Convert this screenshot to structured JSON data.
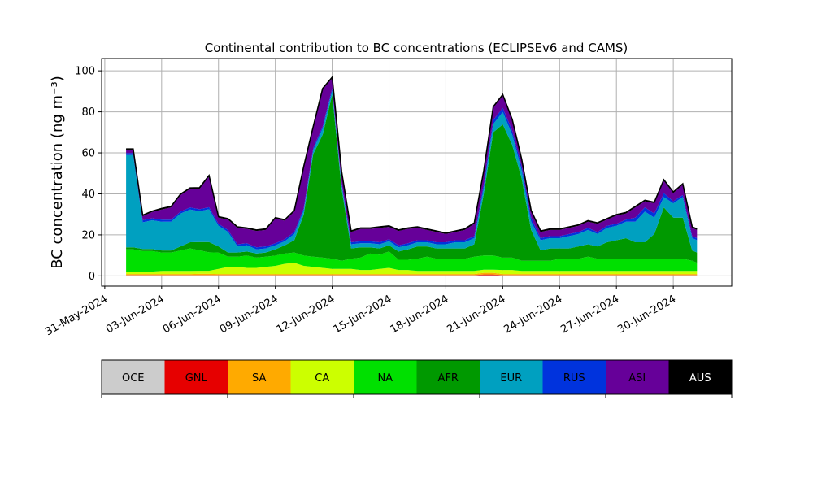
{
  "chart_data": {
    "type": "area",
    "stacked": true,
    "title": "Continental contribution to BC concentrations (ECLIPSEv6 and CAMS)",
    "ylabel": "BC concentration (ng m⁻³)",
    "ylim": [
      -5,
      106
    ],
    "xlim": [
      "2024-05-30T20:00",
      "2024-07-03T02:00"
    ],
    "yticks": [
      0,
      20,
      40,
      60,
      80,
      100
    ],
    "xticks": [
      "31-May-2024",
      "03-Jun-2024",
      "06-Jun-2024",
      "09-Jun-2024",
      "12-Jun-2024",
      "15-Jun-2024",
      "18-Jun-2024",
      "21-Jun-2024",
      "24-Jun-2024",
      "27-Jun-2024",
      "30-Jun-2024"
    ],
    "grid": true,
    "legend_position": "bottom colorbar",
    "x": [
      "2024-06-01T03:00",
      "2024-06-01T12:00",
      "2024-06-02T00:00",
      "2024-06-02T12:00",
      "2024-06-03T00:00",
      "2024-06-03T12:00",
      "2024-06-04T00:00",
      "2024-06-04T12:00",
      "2024-06-05T00:00",
      "2024-06-05T12:00",
      "2024-06-06T00:00",
      "2024-06-06T12:00",
      "2024-06-07T00:00",
      "2024-06-07T12:00",
      "2024-06-08T00:00",
      "2024-06-08T12:00",
      "2024-06-09T00:00",
      "2024-06-09T12:00",
      "2024-06-10T00:00",
      "2024-06-10T12:00",
      "2024-06-11T00:00",
      "2024-06-11T12:00",
      "2024-06-12T00:00",
      "2024-06-12T12:00",
      "2024-06-13T00:00",
      "2024-06-13T12:00",
      "2024-06-14T00:00",
      "2024-06-14T12:00",
      "2024-06-15T00:00",
      "2024-06-15T12:00",
      "2024-06-16T00:00",
      "2024-06-16T12:00",
      "2024-06-17T00:00",
      "2024-06-17T12:00",
      "2024-06-18T00:00",
      "2024-06-18T12:00",
      "2024-06-19T00:00",
      "2024-06-19T12:00",
      "2024-06-20T00:00",
      "2024-06-20T12:00",
      "2024-06-21T00:00",
      "2024-06-21T12:00",
      "2024-06-22T00:00",
      "2024-06-22T12:00",
      "2024-06-23T00:00",
      "2024-06-23T12:00",
      "2024-06-24T00:00",
      "2024-06-24T12:00",
      "2024-06-25T00:00",
      "2024-06-25T12:00",
      "2024-06-26T00:00",
      "2024-06-26T12:00",
      "2024-06-27T00:00",
      "2024-06-27T12:00",
      "2024-06-28T00:00",
      "2024-06-28T12:00",
      "2024-06-29T00:00",
      "2024-06-29T12:00",
      "2024-06-30T00:00",
      "2024-06-30T12:00",
      "2024-07-01T00:00",
      "2024-07-01T06:00"
    ],
    "series": [
      {
        "name": "OCE",
        "color": "#cccccc",
        "values": [
          0.3,
          0.3,
          0.3,
          0.3,
          0.3,
          0.3,
          0.3,
          0.3,
          0.3,
          0.3,
          0.3,
          0.3,
          0.3,
          0.3,
          0.3,
          0.3,
          0.3,
          0.3,
          0.3,
          0.3,
          0.3,
          0.3,
          0.3,
          0.3,
          0.3,
          0.3,
          0.3,
          0.3,
          0.3,
          0.3,
          0.3,
          0.3,
          0.3,
          0.3,
          0.3,
          0.3,
          0.3,
          0.3,
          0.3,
          0.3,
          0.3,
          0.3,
          0.3,
          0.3,
          0.3,
          0.3,
          0.3,
          0.3,
          0.3,
          0.3,
          0.3,
          0.3,
          0.3,
          0.3,
          0.3,
          0.3,
          0.3,
          0.3,
          0.3,
          0.3,
          0.3,
          0.3
        ]
      },
      {
        "name": "GNL",
        "color": "#e60000",
        "values": [
          0.1,
          0.1,
          0.1,
          0.1,
          0.1,
          0.1,
          0.1,
          0.1,
          0.1,
          0.1,
          0.1,
          0.1,
          0.1,
          0.1,
          0.1,
          0.1,
          0.1,
          0.1,
          0.1,
          0.1,
          0.1,
          0.1,
          0.1,
          0.1,
          0.1,
          0.1,
          0.1,
          0.1,
          0.1,
          0.1,
          0.1,
          0.1,
          0.1,
          0.1,
          0.1,
          0.1,
          0.1,
          0.1,
          0.4,
          0.4,
          0.1,
          0.1,
          0.1,
          0.1,
          0.1,
          0.1,
          0.1,
          0.1,
          0.1,
          0.1,
          0.1,
          0.1,
          0.1,
          0.1,
          0.1,
          0.1,
          0.1,
          0.1,
          0.1,
          0.1,
          0.1,
          0.1
        ]
      },
      {
        "name": "SA",
        "color": "#ffaa00",
        "values": [
          0.5,
          0.5,
          0.5,
          0.5,
          0.5,
          0.5,
          0.5,
          0.5,
          0.6,
          0.6,
          0.5,
          0.5,
          0.5,
          0.5,
          0.5,
          0.5,
          0.5,
          0.5,
          0.5,
          0.5,
          0.5,
          0.5,
          0.5,
          0.5,
          0.5,
          0.5,
          0.5,
          0.5,
          0.5,
          0.5,
          0.5,
          0.5,
          0.5,
          0.5,
          0.5,
          0.5,
          0.5,
          0.5,
          0.8,
          0.8,
          0.5,
          0.5,
          0.5,
          0.5,
          0.5,
          0.5,
          0.5,
          0.5,
          0.5,
          0.5,
          0.5,
          0.5,
          0.5,
          0.5,
          0.5,
          0.5,
          0.5,
          0.5,
          0.5,
          0.5,
          0.5,
          0.5
        ]
      },
      {
        "name": "CA",
        "color": "#ccff00",
        "values": [
          1.0,
          1.0,
          1.2,
          1.2,
          1.5,
          1.5,
          1.5,
          1.5,
          1.5,
          1.5,
          2.5,
          3.5,
          3.5,
          3.0,
          3.0,
          3.5,
          4.0,
          5.0,
          5.5,
          4.0,
          3.5,
          3.0,
          2.5,
          2.5,
          2.5,
          2.0,
          2.0,
          2.5,
          3.0,
          2.0,
          2.0,
          1.5,
          1.5,
          1.5,
          1.5,
          1.5,
          1.5,
          1.5,
          1.5,
          1.5,
          2.0,
          2.0,
          1.5,
          1.5,
          1.5,
          1.5,
          1.5,
          1.5,
          1.5,
          1.5,
          1.5,
          1.5,
          1.5,
          1.5,
          1.5,
          1.5,
          1.5,
          1.5,
          1.5,
          1.5,
          1.5,
          1.5
        ]
      },
      {
        "name": "NA",
        "color": "#00e000",
        "values": [
          11,
          11,
          10,
          10,
          9,
          9,
          10,
          11,
          10,
          9,
          8,
          5,
          5,
          6,
          5,
          5,
          5,
          5,
          5,
          5,
          5,
          5,
          5,
          4,
          5,
          6,
          8,
          7,
          8,
          5,
          5,
          6,
          7,
          6,
          6,
          6,
          6,
          7,
          7,
          7,
          6,
          6,
          5,
          5,
          5,
          5,
          6,
          6,
          6,
          7,
          6,
          6,
          6,
          6,
          6,
          6,
          6,
          6,
          6,
          6,
          5,
          4
        ]
      },
      {
        "name": "AFR",
        "color": "#009900",
        "values": [
          1,
          1,
          1,
          1,
          1,
          1,
          2,
          3,
          4,
          5,
          3,
          2,
          2,
          2,
          2,
          2,
          3,
          4,
          6,
          20,
          50,
          60,
          80,
          35,
          5,
          5,
          3,
          3,
          3,
          4,
          5,
          6,
          5,
          5,
          5,
          5,
          5,
          6,
          30,
          60,
          65,
          55,
          40,
          15,
          5,
          6,
          5,
          5,
          6,
          6,
          6,
          8,
          9,
          10,
          8,
          8,
          12,
          25,
          20,
          20,
          5,
          5
        ]
      },
      {
        "name": "EUR",
        "color": "#00a0c0",
        "values": [
          45,
          45,
          13,
          14,
          14,
          14,
          16,
          16,
          15,
          16,
          10,
          10,
          3,
          3,
          2,
          2,
          2,
          2,
          3,
          2,
          2,
          3,
          2,
          2,
          2,
          2,
          2,
          2,
          2,
          2,
          2,
          2,
          2,
          2,
          2,
          3,
          3,
          3,
          3,
          4,
          6,
          5,
          4,
          4,
          5,
          5,
          5,
          6,
          6,
          7,
          6,
          7,
          7,
          8,
          10,
          15,
          8,
          5,
          7,
          10,
          6,
          6
        ]
      },
      {
        "name": "RUS",
        "color": "#0033dd",
        "values": [
          1,
          1,
          1,
          1,
          1,
          1,
          1,
          1,
          1,
          1,
          1,
          1,
          1,
          1,
          1,
          1,
          1,
          1,
          1,
          1,
          1,
          1,
          1,
          1,
          1,
          1,
          1,
          1,
          1,
          1,
          1,
          1,
          1,
          1,
          1,
          1,
          1,
          1,
          2,
          2,
          2,
          2,
          2,
          2,
          1,
          1,
          1,
          1,
          1,
          1,
          1,
          1,
          1,
          1,
          2,
          2,
          2,
          2,
          1,
          1,
          1,
          1
        ]
      },
      {
        "name": "ASI",
        "color": "#660099",
        "values": [
          1.5,
          1.5,
          2,
          3,
          5,
          6,
          8,
          9,
          10,
          15,
          3,
          5,
          8,
          7,
          8,
          8,
          12,
          9,
          10,
          20,
          10,
          18,
          5,
          5,
          5,
          6,
          6,
          7,
          6,
          7,
          7,
          6,
          5,
          5,
          4,
          4,
          5,
          6,
          6,
          6,
          6,
          5,
          3,
          3,
          3,
          3,
          3,
          3,
          3,
          3,
          4,
          3,
          4,
          3,
          5,
          3,
          5,
          6,
          4,
          5,
          4,
          4
        ]
      },
      {
        "name": "AUS",
        "color": "#000000",
        "values": [
          0.5,
          0.5,
          0.5,
          0.5,
          0.5,
          0.5,
          0.5,
          0.5,
          0.5,
          0.5,
          0.5,
          0.5,
          0.5,
          0.5,
          0.5,
          0.5,
          0.5,
          0.5,
          0.5,
          0.5,
          0.5,
          0.5,
          0.5,
          0.5,
          0.5,
          0.5,
          0.5,
          0.5,
          0.5,
          0.5,
          0.5,
          0.5,
          0.5,
          0.5,
          0.5,
          0.5,
          0.5,
          0.5,
          0.5,
          0.5,
          0.5,
          0.5,
          0.5,
          0.5,
          0.5,
          0.5,
          0.5,
          0.5,
          0.5,
          0.5,
          0.5,
          0.5,
          0.5,
          0.5,
          0.5,
          0.5,
          0.5,
          0.5,
          0.5,
          0.5,
          0.5,
          0.5
        ]
      }
    ]
  }
}
